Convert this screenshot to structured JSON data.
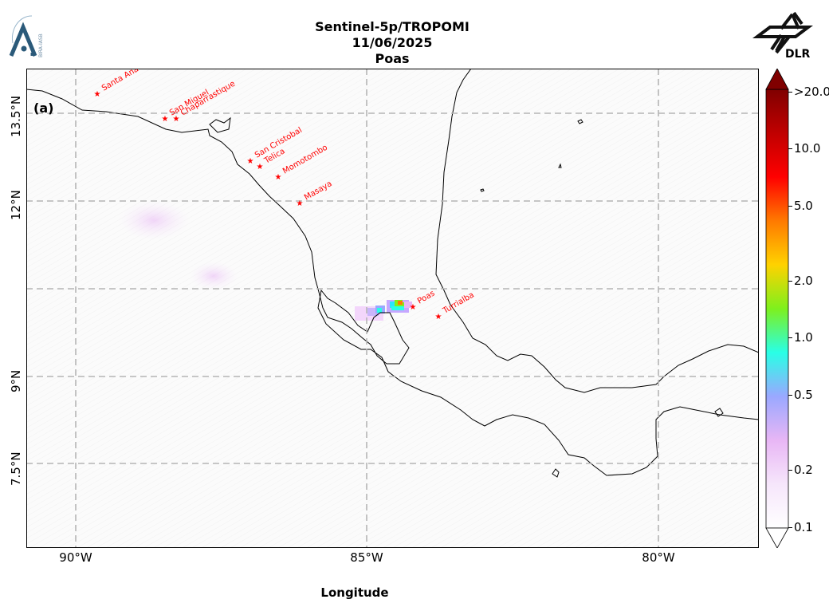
{
  "header": {
    "title_line1": "Sentinel-5p/TROPOMI",
    "title_line2": "11/06/2025",
    "title_line3": "Poas",
    "right_logo_text": "DLR"
  },
  "map": {
    "panel_label": "(a)",
    "x_axis_label": "Longitude",
    "x_ticks": [
      "90°W",
      "85°W",
      "80°W"
    ],
    "y_ticks": [
      "13.5°N",
      "12°N",
      "9°N",
      "7.5°N"
    ],
    "gridlines": true,
    "volcanoes": [
      {
        "name": "Santa Ana"
      },
      {
        "name": "San Miguel"
      },
      {
        "name": "Chaparrastique"
      },
      {
        "name": "San Cristobal"
      },
      {
        "name": "Telica"
      },
      {
        "name": "Momotombo"
      },
      {
        "name": "Masaya"
      },
      {
        "name": "Poas"
      },
      {
        "name": "Turrialba"
      }
    ],
    "marker_color": "#ff0000"
  },
  "colorbar": {
    "scale": "log",
    "ticks": [
      "0.1",
      "0.2",
      "0.5",
      "1.0",
      "2.0",
      "5.0",
      "10.0",
      ">20.0"
    ],
    "colors": [
      "#ffffff",
      "#f6e6fb",
      "#e8b6f5",
      "#9aa8ff",
      "#29ffe6",
      "#7ef01d",
      "#ffd200",
      "#ff7a00",
      "#ff0000",
      "#c00000",
      "#800000"
    ]
  }
}
